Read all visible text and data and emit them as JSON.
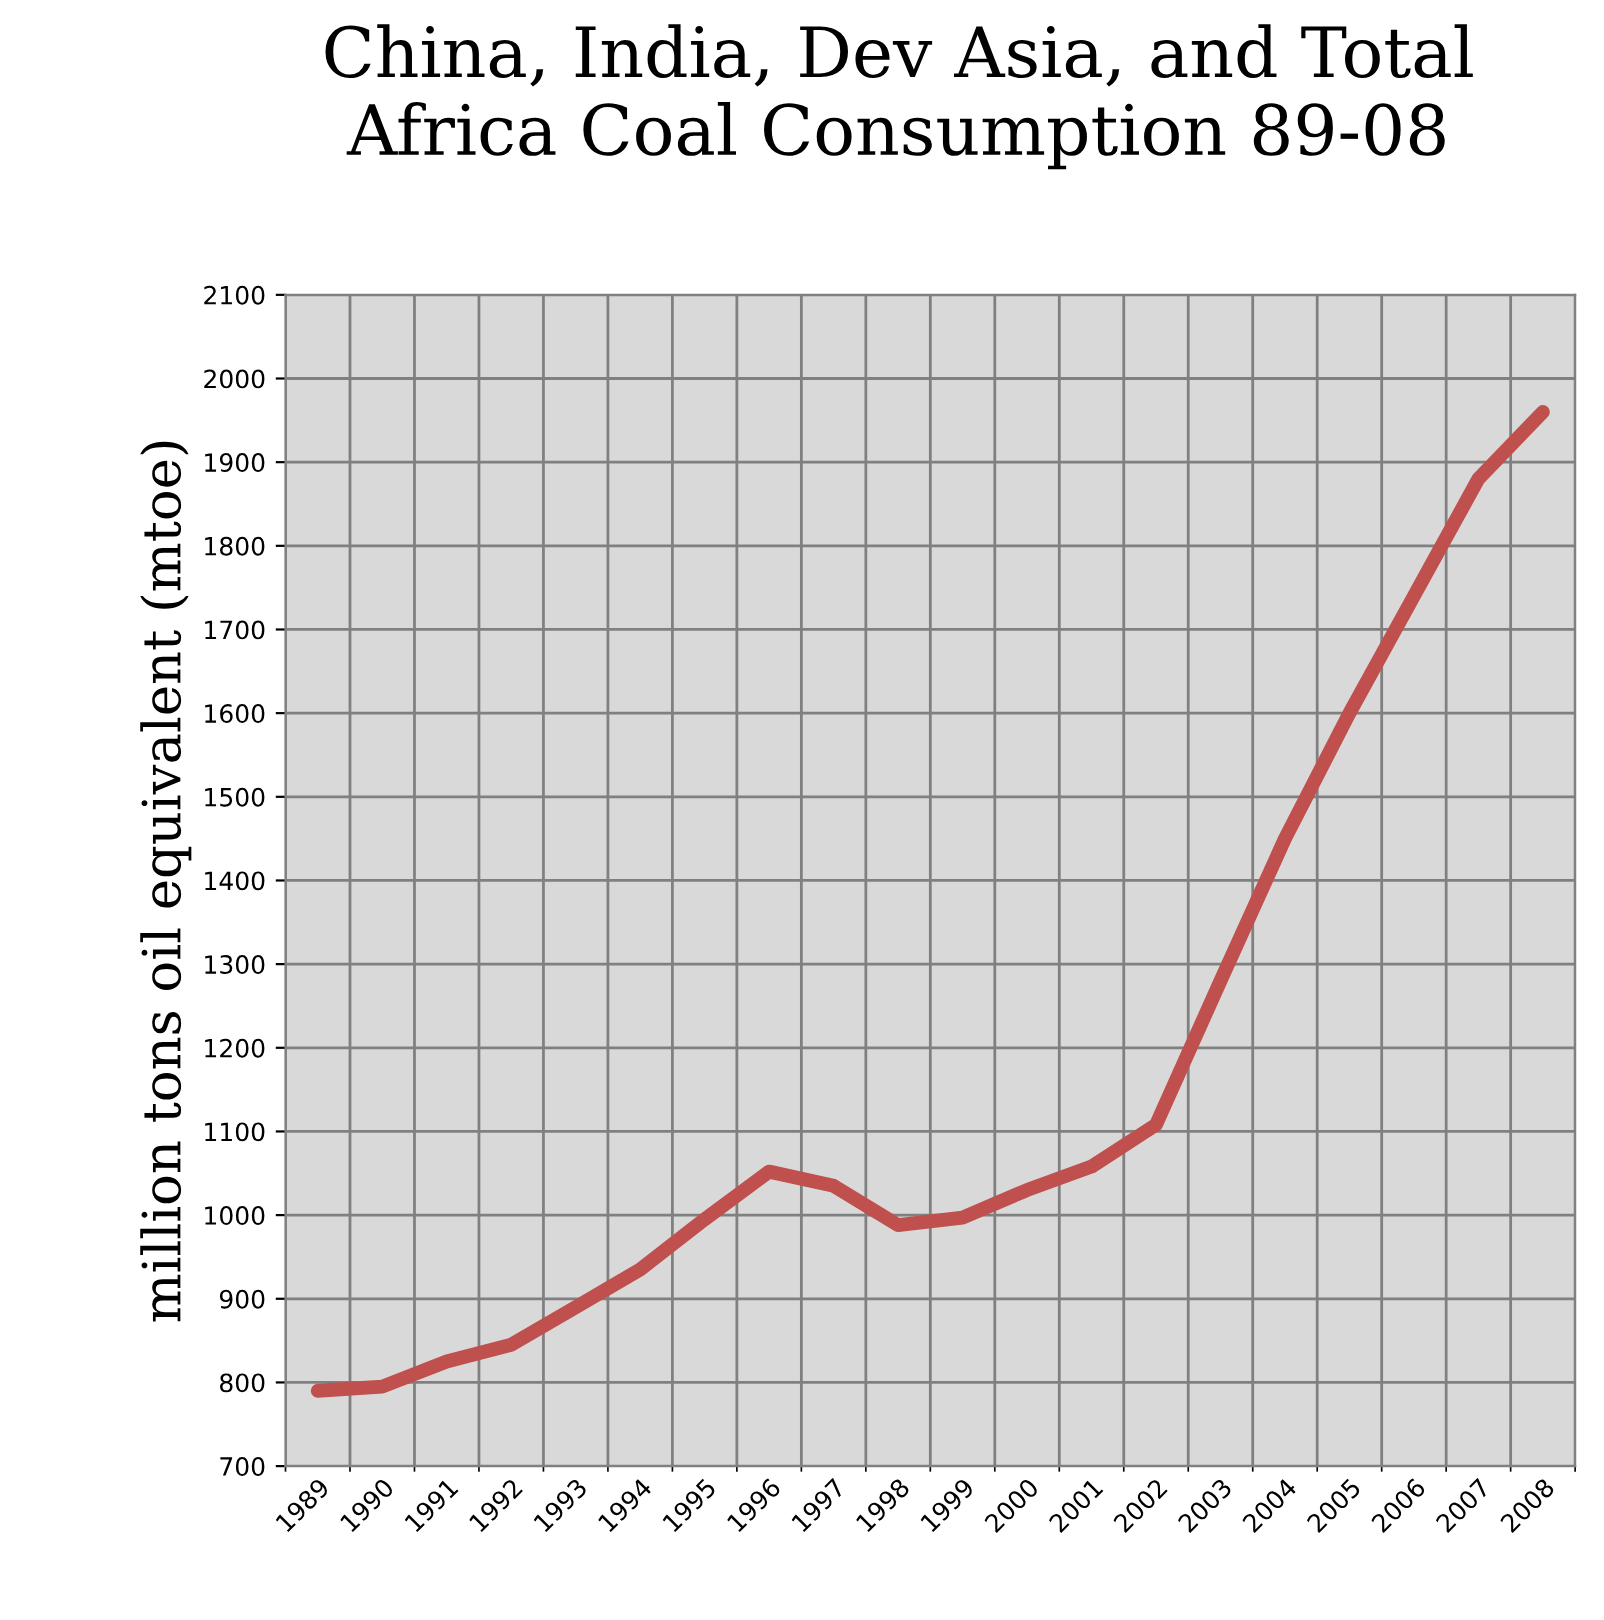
{
  "chart_data": {
    "type": "line",
    "title": "China, India, Dev Asia, and Total\nAfrica Coal Consumption 89-08",
    "ylabel": "million tons oil equivalent (mtoe)",
    "categories": [
      "1989",
      "1990",
      "1991",
      "1992",
      "1993",
      "1994",
      "1995",
      "1996",
      "1997",
      "1998",
      "1999",
      "2000",
      "2001",
      "2002",
      "2003",
      "2004",
      "2005",
      "2006",
      "2007",
      "2008"
    ],
    "series": [
      {
        "color": "#c0504d",
        "values": [
          790,
          795,
          825,
          845,
          890,
          935,
          995,
          1052,
          1035,
          988,
          997,
          1030,
          1058,
          1108,
          1280,
          1450,
          1600,
          1740,
          1880,
          1960
        ]
      }
    ],
    "ylim": [
      700,
      2100
    ],
    "yticks": [
      700,
      800,
      900,
      1000,
      1100,
      1200,
      1300,
      1400,
      1500,
      1600,
      1700,
      1800,
      1900,
      2000,
      2100
    ],
    "grid": true,
    "marker": "none",
    "line_style": "solid"
  }
}
